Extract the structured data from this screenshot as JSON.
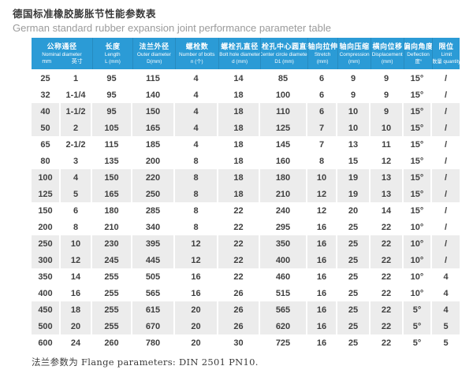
{
  "page": {
    "title_zh": "德国标准橡胶膨胀节性能参数表",
    "title_en": "German standard rubber expansion joint performance parameter table",
    "footer_note": "法兰参数为 Flange parameters: DIN 2501 PN10."
  },
  "colors": {
    "header_bg": "#2b9bd6",
    "header_text": "#ffffff",
    "shaded_row_bg": "#ececec",
    "body_text": "#3f3f3f",
    "title_text": "#3a3a3a",
    "subtitle_text": "#9b9b9b"
  },
  "table": {
    "columns": [
      {
        "zh": "公称通径",
        "en": "Nominal diameter",
        "span": 2,
        "sub_units": [
          "mm",
          "英寸"
        ]
      },
      {
        "zh": "长度",
        "en": "Length",
        "unit": "L (mm)"
      },
      {
        "zh": "法兰外径",
        "en": "Outer diameter",
        "unit": "D(mm)"
      },
      {
        "zh": "螺栓数",
        "en": "Number of bolts",
        "unit": "n (个)"
      },
      {
        "zh": "螺栓孔直径",
        "en": "Bolt hole diameter",
        "unit": "d (mm)"
      },
      {
        "zh": "螺栓孔中心圆直径",
        "en": "Center circle diameter",
        "unit": "D1 (mm)"
      },
      {
        "zh": "轴向拉伸",
        "en": "Stretch",
        "unit": "(mm)"
      },
      {
        "zh": "轴向压缩",
        "en": "Compression",
        "unit": "(mm)"
      },
      {
        "zh": "横向位移",
        "en": "Displacement",
        "unit": "(mm)"
      },
      {
        "zh": "偏向角度",
        "en": "Deflection",
        "unit": "度°"
      },
      {
        "zh": "限位",
        "en": "Limit",
        "unit": "数量 quantity"
      }
    ],
    "rows": [
      {
        "shaded": false,
        "cells": [
          "25",
          "1",
          "95",
          "115",
          "4",
          "14",
          "85",
          "6",
          "9",
          "9",
          "15°",
          "/"
        ]
      },
      {
        "shaded": false,
        "cells": [
          "32",
          "1-1/4",
          "95",
          "140",
          "4",
          "18",
          "100",
          "6",
          "9",
          "9",
          "15°",
          "/"
        ]
      },
      {
        "shaded": true,
        "cells": [
          "40",
          "1-1/2",
          "95",
          "150",
          "4",
          "18",
          "110",
          "6",
          "10",
          "9",
          "15°",
          "/"
        ]
      },
      {
        "shaded": true,
        "cells": [
          "50",
          "2",
          "105",
          "165",
          "4",
          "18",
          "125",
          "7",
          "10",
          "10",
          "15°",
          "/"
        ]
      },
      {
        "shaded": false,
        "cells": [
          "65",
          "2-1/2",
          "115",
          "185",
          "4",
          "18",
          "145",
          "7",
          "13",
          "11",
          "15°",
          "/"
        ]
      },
      {
        "shaded": false,
        "cells": [
          "80",
          "3",
          "135",
          "200",
          "8",
          "18",
          "160",
          "8",
          "15",
          "12",
          "15°",
          "/"
        ]
      },
      {
        "shaded": true,
        "cells": [
          "100",
          "4",
          "150",
          "220",
          "8",
          "18",
          "180",
          "10",
          "19",
          "13",
          "15°",
          "/"
        ]
      },
      {
        "shaded": true,
        "cells": [
          "125",
          "5",
          "165",
          "250",
          "8",
          "18",
          "210",
          "12",
          "19",
          "13",
          "15°",
          "/"
        ]
      },
      {
        "shaded": false,
        "cells": [
          "150",
          "6",
          "180",
          "285",
          "8",
          "22",
          "240",
          "12",
          "20",
          "14",
          "15°",
          "/"
        ]
      },
      {
        "shaded": false,
        "cells": [
          "200",
          "8",
          "210",
          "340",
          "8",
          "22",
          "295",
          "16",
          "25",
          "22",
          "10°",
          "/"
        ]
      },
      {
        "shaded": true,
        "cells": [
          "250",
          "10",
          "230",
          "395",
          "12",
          "22",
          "350",
          "16",
          "25",
          "22",
          "10°",
          "/"
        ]
      },
      {
        "shaded": true,
        "cells": [
          "300",
          "12",
          "245",
          "445",
          "12",
          "22",
          "400",
          "16",
          "25",
          "22",
          "10°",
          "/"
        ]
      },
      {
        "shaded": false,
        "cells": [
          "350",
          "14",
          "255",
          "505",
          "16",
          "22",
          "460",
          "16",
          "25",
          "22",
          "10°",
          "4"
        ]
      },
      {
        "shaded": false,
        "cells": [
          "400",
          "16",
          "255",
          "565",
          "16",
          "26",
          "515",
          "16",
          "25",
          "22",
          "10°",
          "4"
        ]
      },
      {
        "shaded": true,
        "cells": [
          "450",
          "18",
          "255",
          "615",
          "20",
          "26",
          "565",
          "16",
          "25",
          "22",
          "5°",
          "4"
        ]
      },
      {
        "shaded": true,
        "cells": [
          "500",
          "20",
          "255",
          "670",
          "20",
          "26",
          "620",
          "16",
          "25",
          "22",
          "5°",
          "5"
        ]
      },
      {
        "shaded": false,
        "cells": [
          "600",
          "24",
          "260",
          "780",
          "20",
          "30",
          "725",
          "16",
          "25",
          "22",
          "5°",
          "5"
        ]
      }
    ]
  }
}
